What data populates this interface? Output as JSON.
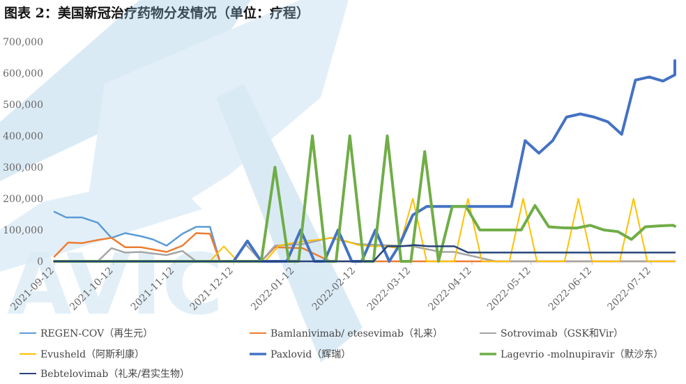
{
  "title": "图表 2：美国新冠治疗药物分发情况（单位：疗程）",
  "chart_data": {
    "type": "line",
    "title": "图表 2：美国新冠治疗药物分发情况（单位：疗程）",
    "ylim": [
      0,
      700000
    ],
    "yticks": [
      "0",
      "100,000",
      "200,000",
      "300,000",
      "400,000",
      "500,000",
      "600,000",
      "700,000"
    ],
    "ytick_values": [
      0,
      100000,
      200000,
      300000,
      400000,
      500000,
      600000,
      700000
    ],
    "x_range": [
      "2021-09-12",
      "2022-07-24"
    ],
    "xticks": [
      "2021-09-12",
      "2021-10-12",
      "2021-11-12",
      "2021-12-12",
      "2022-01-12",
      "2022-02-12",
      "2022-03-12",
      "2022-04-12",
      "2022-05-12",
      "2022-06-12",
      "2022-07-12"
    ],
    "grid": false,
    "legend_position": "bottom",
    "series": [
      {
        "name": "REGEN-COV（再生元）",
        "color": "#5B9BD5",
        "width": 2.5,
        "points": [
          [
            "2021-09-12",
            158000
          ],
          [
            "2021-09-18",
            140000
          ],
          [
            "2021-09-26",
            140000
          ],
          [
            "2021-10-04",
            123000
          ],
          [
            "2021-10-11",
            75000
          ],
          [
            "2021-10-18",
            90000
          ],
          [
            "2021-10-26",
            80000
          ],
          [
            "2021-11-01",
            70000
          ],
          [
            "2021-11-08",
            50000
          ],
          [
            "2021-11-16",
            88000
          ],
          [
            "2021-11-23",
            110000
          ],
          [
            "2021-11-30",
            110000
          ],
          [
            "2021-12-05",
            0
          ]
        ]
      },
      {
        "name": "Bamlanivimab/ etesevimab（礼来）",
        "color": "#ED7D31",
        "width": 2.5,
        "points": [
          [
            "2021-09-12",
            15000
          ],
          [
            "2021-09-19",
            60000
          ],
          [
            "2021-09-26",
            58000
          ],
          [
            "2021-10-04",
            68000
          ],
          [
            "2021-10-11",
            75000
          ],
          [
            "2021-10-18",
            45000
          ],
          [
            "2021-10-26",
            45000
          ],
          [
            "2021-11-01",
            38000
          ],
          [
            "2021-11-08",
            30000
          ],
          [
            "2021-11-16",
            50000
          ],
          [
            "2021-11-23",
            90000
          ],
          [
            "2021-11-30",
            88000
          ],
          [
            "2021-12-05",
            0
          ],
          [
            "2021-12-26",
            0
          ],
          [
            "2022-01-02",
            45000
          ],
          [
            "2022-01-16",
            42000
          ],
          [
            "2022-01-30",
            0
          ],
          [
            "2022-07-24",
            0
          ]
        ]
      },
      {
        "name": "Sotrovimab（GSK和Vir）",
        "color": "#A5A5A5",
        "width": 2.5,
        "points": [
          [
            "2021-09-12",
            0
          ],
          [
            "2021-10-04",
            0
          ],
          [
            "2021-10-11",
            42000
          ],
          [
            "2021-10-18",
            28000
          ],
          [
            "2021-10-26",
            30000
          ],
          [
            "2021-11-01",
            25000
          ],
          [
            "2021-11-08",
            20000
          ],
          [
            "2021-11-16",
            33000
          ],
          [
            "2021-11-23",
            0
          ],
          [
            "2021-12-12",
            0
          ],
          [
            "2021-12-18",
            55000
          ],
          [
            "2021-12-26",
            0
          ],
          [
            "2022-01-02",
            50000
          ],
          [
            "2022-01-16",
            55000
          ],
          [
            "2022-01-30",
            75000
          ],
          [
            "2022-02-13",
            55000
          ],
          [
            "2022-03-13",
            48000
          ],
          [
            "2022-03-27",
            30000
          ],
          [
            "2022-04-03",
            30000
          ],
          [
            "2022-04-17",
            10000
          ],
          [
            "2022-04-24",
            0
          ],
          [
            "2022-07-24",
            0
          ]
        ]
      },
      {
        "name": "Evusheld（阿斯利康）",
        "color": "#FFC000",
        "width": 2,
        "points": [
          [
            "2021-09-12",
            0
          ],
          [
            "2021-11-30",
            0
          ],
          [
            "2021-12-07",
            48000
          ],
          [
            "2021-12-14",
            0
          ],
          [
            "2021-12-28",
            0
          ],
          [
            "2022-01-04",
            50000
          ],
          [
            "2022-01-12",
            60000
          ],
          [
            "2022-01-18",
            65000
          ],
          [
            "2022-01-25",
            70000
          ],
          [
            "2022-01-31",
            75000
          ],
          [
            "2022-02-07",
            65000
          ],
          [
            "2022-02-13",
            52000
          ],
          [
            "2022-02-21",
            48000
          ],
          [
            "2022-02-27",
            48000
          ],
          [
            "2022-03-06",
            42000
          ],
          [
            "2022-03-13",
            200000
          ],
          [
            "2022-03-20",
            0
          ],
          [
            "2022-04-03",
            0
          ],
          [
            "2022-04-10",
            200000
          ],
          [
            "2022-04-17",
            0
          ],
          [
            "2022-05-01",
            0
          ],
          [
            "2022-05-08",
            200000
          ],
          [
            "2022-05-15",
            0
          ],
          [
            "2022-05-29",
            0
          ],
          [
            "2022-06-05",
            200000
          ],
          [
            "2022-06-12",
            0
          ],
          [
            "2022-06-26",
            0
          ],
          [
            "2022-07-03",
            200000
          ],
          [
            "2022-07-10",
            0
          ],
          [
            "2022-07-24",
            0
          ]
        ]
      },
      {
        "name": "Paxlovid（辉瑞）",
        "color": "#4472C4",
        "width": 4,
        "points": [
          [
            "2021-09-12",
            0
          ],
          [
            "2021-12-12",
            0
          ],
          [
            "2021-12-19",
            65000
          ],
          [
            "2021-12-26",
            0
          ],
          [
            "2022-01-08",
            0
          ],
          [
            "2022-01-15",
            100000
          ],
          [
            "2022-01-22",
            0
          ],
          [
            "2022-01-27",
            0
          ],
          [
            "2022-02-03",
            100000
          ],
          [
            "2022-02-10",
            0
          ],
          [
            "2022-02-15",
            0
          ],
          [
            "2022-02-22",
            100000
          ],
          [
            "2022-03-01",
            0
          ],
          [
            "2022-03-06",
            50000
          ],
          [
            "2022-03-13",
            148000
          ],
          [
            "2022-03-20",
            175000
          ],
          [
            "2022-05-02",
            175000
          ],
          [
            "2022-05-09",
            385000
          ],
          [
            "2022-05-16",
            345000
          ],
          [
            "2022-05-23",
            385000
          ],
          [
            "2022-05-30",
            460000
          ],
          [
            "2022-06-06",
            470000
          ],
          [
            "2022-06-13",
            460000
          ],
          [
            "2022-06-20",
            445000
          ],
          [
            "2022-06-27",
            405000
          ],
          [
            "2022-07-04",
            578000
          ],
          [
            "2022-07-11",
            588000
          ],
          [
            "2022-07-18",
            575000
          ],
          [
            "2022-07-25",
            595000
          ],
          [
            "2022-08-01",
            640000
          ]
        ]
      },
      {
        "name": "Lagevrio -molnupiravir（默沙东）",
        "color": "#70AD47",
        "width": 4,
        "points": [
          [
            "2021-09-12",
            0
          ],
          [
            "2021-12-26",
            0
          ],
          [
            "2022-01-02",
            300000
          ],
          [
            "2022-01-09",
            0
          ],
          [
            "2022-01-14",
            0
          ],
          [
            "2022-01-21",
            400000
          ],
          [
            "2022-01-28",
            0
          ],
          [
            "2022-02-02",
            0
          ],
          [
            "2022-02-09",
            400000
          ],
          [
            "2022-02-16",
            0
          ],
          [
            "2022-02-21",
            0
          ],
          [
            "2022-02-28",
            400000
          ],
          [
            "2022-03-07",
            0
          ],
          [
            "2022-03-12",
            0
          ],
          [
            "2022-03-19",
            350000
          ],
          [
            "2022-03-26",
            0
          ],
          [
            "2022-04-02",
            175000
          ],
          [
            "2022-04-09",
            175000
          ],
          [
            "2022-04-16",
            100000
          ],
          [
            "2022-05-07",
            100000
          ],
          [
            "2022-05-14",
            178000
          ],
          [
            "2022-05-21",
            110000
          ],
          [
            "2022-05-28",
            107000
          ],
          [
            "2022-06-04",
            106000
          ],
          [
            "2022-06-11",
            115000
          ],
          [
            "2022-06-18",
            100000
          ],
          [
            "2022-06-25",
            95000
          ],
          [
            "2022-07-02",
            70000
          ],
          [
            "2022-07-09",
            110000
          ],
          [
            "2022-07-16",
            113000
          ],
          [
            "2022-07-23",
            115000
          ],
          [
            "2022-08-01",
            112000
          ]
        ]
      },
      {
        "name": "Bebtelovimab（礼来/君实生物）",
        "color": "#264478",
        "width": 2.5,
        "points": [
          [
            "2021-09-12",
            0
          ],
          [
            "2022-02-21",
            0
          ],
          [
            "2022-02-28",
            48000
          ],
          [
            "2022-03-07",
            48000
          ],
          [
            "2022-03-14",
            52000
          ],
          [
            "2022-03-21",
            48000
          ],
          [
            "2022-04-03",
            48000
          ],
          [
            "2022-04-10",
            28000
          ],
          [
            "2022-05-08",
            28000
          ],
          [
            "2022-08-01",
            28000
          ]
        ]
      }
    ]
  }
}
